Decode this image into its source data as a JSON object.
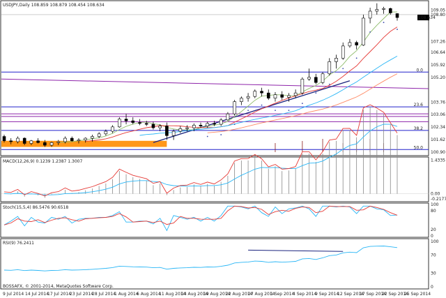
{
  "header": {
    "symbol_line": "USDJPY,Daily  108.859 108.879 108.454 108.634"
  },
  "copyright": "BOSSAFX, © 2001-2014, MetaQuotes Software Corp.",
  "colors": {
    "bull_body": "#ffffff",
    "bear_body": "#000000",
    "trendline": "#1a237e",
    "fib_blue": "#2222cc",
    "fib_purple": "#8e24aa",
    "ma_fast": "#8fbc6b",
    "ma_mid": "#e53935",
    "ma_slow": "#29b6f6",
    "ma_slowest": "#ff8a65",
    "sar": "#3949ab",
    "orange_zone": "#ff8c00",
    "macd_main": "#e53935",
    "macd_signal": "#29b6f6",
    "hist": "#888888",
    "vol": "#8b1a1a"
  },
  "chart_data": [
    {
      "type": "candlestick",
      "title": "USDJPY,Daily",
      "ohlc_header": {
        "open": 108.859,
        "high": 108.879,
        "low": 108.454,
        "close": 108.634
      },
      "y_ticks": [
        109.05,
        108.8,
        107.26,
        106.64,
        105.92,
        105.2,
        103.76,
        103.06,
        102.34,
        101.62,
        100.9
      ],
      "ylim": [
        100.9,
        109.4
      ],
      "x_ticks": [
        "9 Jul 2014",
        "14 Jul 2014",
        "17 Jul 2014",
        "23 Jul 2014",
        "28 Jul 2014",
        "1 Aug 2014",
        "6 Aug 2014",
        "11 Aug 2014",
        "14 Aug 2014",
        "19 Aug 2014",
        "22 Aug 2014",
        "27 Aug 2014",
        "1 Sep 2014",
        "4 Sep 2014",
        "9 Sep 2014",
        "12 Sep 2014",
        "17 Sep 2014",
        "22 Sep 2014",
        "25 Sep 2014"
      ],
      "current_price": "108.634",
      "fib_labels": [
        {
          "label": "0.0",
          "price": 105.5
        },
        {
          "label": "23.6",
          "price": 103.5
        },
        {
          "label": "38.2",
          "price": 102.15
        },
        {
          "label": "50.0",
          "price": 101.05
        }
      ],
      "candles": [
        [
          101.8,
          101.9,
          101.45,
          101.55
        ],
        [
          101.55,
          101.7,
          101.35,
          101.5
        ],
        [
          101.5,
          101.8,
          101.4,
          101.7
        ],
        [
          101.7,
          101.75,
          101.3,
          101.4
        ],
        [
          101.4,
          101.6,
          101.3,
          101.55
        ],
        [
          101.55,
          101.7,
          101.4,
          101.45
        ],
        [
          101.45,
          101.6,
          101.2,
          101.3
        ],
        [
          101.3,
          101.5,
          101.2,
          101.45
        ],
        [
          101.45,
          101.6,
          101.3,
          101.5
        ],
        [
          101.5,
          101.8,
          101.4,
          101.7
        ],
        [
          101.7,
          101.8,
          101.5,
          101.55
        ],
        [
          101.55,
          101.7,
          101.4,
          101.6
        ],
        [
          101.6,
          101.75,
          101.45,
          101.7
        ],
        [
          101.7,
          101.9,
          101.5,
          101.8
        ],
        [
          101.8,
          102.05,
          101.7,
          101.95
        ],
        [
          101.95,
          102.2,
          101.85,
          102.1
        ],
        [
          102.1,
          102.45,
          102.0,
          102.35
        ],
        [
          102.35,
          102.9,
          102.3,
          102.8
        ],
        [
          102.8,
          103.1,
          102.5,
          102.7
        ],
        [
          102.7,
          102.9,
          102.5,
          102.6
        ],
        [
          102.6,
          102.8,
          102.45,
          102.55
        ],
        [
          102.55,
          102.7,
          102.4,
          102.5
        ],
        [
          102.5,
          102.65,
          102.2,
          102.3
        ],
        [
          102.3,
          102.5,
          102.1,
          102.4
        ],
        [
          102.4,
          102.6,
          101.6,
          101.85
        ],
        [
          101.85,
          102.2,
          101.6,
          102.1
        ],
        [
          102.1,
          102.4,
          102.0,
          102.25
        ],
        [
          102.25,
          102.45,
          102.1,
          102.3
        ],
        [
          102.3,
          102.55,
          102.1,
          102.45
        ],
        [
          102.45,
          102.6,
          102.3,
          102.4
        ],
        [
          102.4,
          102.65,
          102.3,
          102.55
        ],
        [
          102.55,
          102.7,
          102.4,
          102.5
        ],
        [
          102.5,
          102.85,
          102.4,
          102.75
        ],
        [
          102.75,
          103.2,
          102.7,
          103.1
        ],
        [
          103.1,
          103.9,
          103.0,
          103.8
        ],
        [
          103.8,
          104.1,
          103.6,
          104.0
        ],
        [
          104.0,
          104.3,
          103.8,
          104.1
        ],
        [
          104.1,
          104.5,
          104.0,
          104.4
        ],
        [
          104.4,
          104.6,
          104.1,
          104.3
        ],
        [
          104.3,
          104.5,
          103.9,
          104.0
        ],
        [
          104.0,
          104.35,
          103.8,
          104.2
        ],
        [
          104.2,
          104.4,
          103.9,
          104.05
        ],
        [
          104.05,
          104.3,
          103.8,
          104.15
        ],
        [
          104.15,
          104.5,
          104.0,
          104.3
        ],
        [
          104.3,
          105.2,
          104.2,
          105.1
        ],
        [
          105.1,
          105.7,
          105.0,
          105.2
        ],
        [
          105.2,
          105.4,
          104.8,
          104.9
        ],
        [
          104.9,
          105.5,
          104.8,
          105.4
        ],
        [
          105.4,
          106.3,
          105.3,
          106.1
        ],
        [
          106.1,
          106.5,
          105.7,
          106.3
        ],
        [
          106.3,
          107.2,
          106.2,
          107.0
        ],
        [
          107.0,
          107.4,
          106.9,
          107.2
        ],
        [
          107.2,
          107.3,
          106.8,
          107.05
        ],
        [
          107.05,
          108.8,
          107.0,
          108.6
        ],
        [
          108.6,
          109.2,
          108.3,
          109.0
        ],
        [
          109.0,
          109.45,
          108.8,
          109.1
        ],
        [
          109.1,
          109.25,
          108.85,
          109.15
        ],
        [
          109.15,
          109.2,
          108.8,
          108.9
        ],
        [
          108.859,
          108.879,
          108.454,
          108.634
        ]
      ],
      "macd": {
        "label": "MACD(12,26,9) 0.1239 1.2387 1.3007",
        "ticks": [
          "1.4335",
          "0.00",
          "-0.2177"
        ]
      },
      "stoch": {
        "label": "Stoch(15,5,4) 86.5476 90.6518",
        "ticks": [
          "100",
          "80",
          "20",
          "0"
        ]
      },
      "rsi": {
        "label": "RSI(9) 76.2411",
        "ticks": [
          "100",
          "70",
          "30",
          "0"
        ]
      }
    }
  ]
}
